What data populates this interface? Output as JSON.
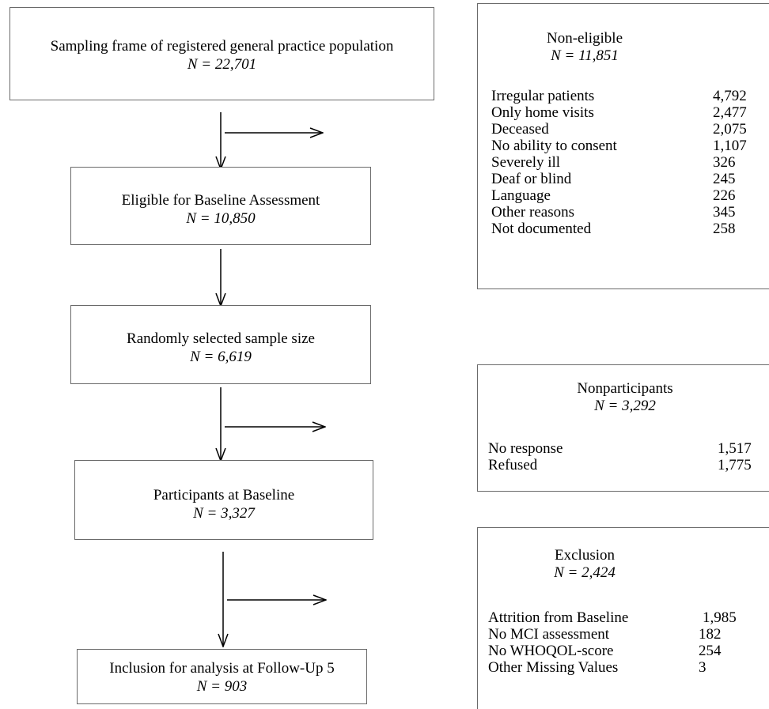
{
  "flow": [
    {
      "title": "Sampling frame of registered general practice population",
      "n": "N = 22,701"
    },
    {
      "title": "Eligible for Baseline Assessment",
      "n": "N = 10,850"
    },
    {
      "title": "Randomly selected sample size",
      "n": "N = 6,619"
    },
    {
      "title": "Participants at Baseline",
      "n": "N = 3,327"
    },
    {
      "title": "Inclusion for analysis at Follow-Up 5",
      "n": "N = 903"
    }
  ],
  "non_eligible": {
    "title": "Non-eligible",
    "n": "N = 11,851",
    "items": [
      {
        "label": "Irregular patients",
        "value": "4,792"
      },
      {
        "label": "Only home visits",
        "value": "2,477"
      },
      {
        "label": "Deceased",
        "value": "2,075"
      },
      {
        "label": "No ability to consent",
        "value": "1,107"
      },
      {
        "label": "Severely ill",
        "value": "326"
      },
      {
        "label": "Deaf or blind",
        "value": "245"
      },
      {
        "label": "Language",
        "value": "226"
      },
      {
        "label": "Other reasons",
        "value": "345"
      },
      {
        "label": "Not documented",
        "value": "258"
      }
    ]
  },
  "nonparticipants": {
    "title": "Nonparticipants",
    "n": "N = 3,292",
    "items": [
      {
        "label": "No response",
        "value": "1,517"
      },
      {
        "label": "Refused",
        "value": "1,775"
      }
    ]
  },
  "exclusion": {
    "title": "Exclusion",
    "n": "N = 2,424",
    "items": [
      {
        "label": "Attrition from Baseline",
        "value": "1,985"
      },
      {
        "label": "No MCI assessment",
        "value": "182"
      },
      {
        "label": "No WHOQOL-score",
        "value": "254"
      },
      {
        "label": "Other Missing Values",
        "value": "3"
      }
    ]
  }
}
